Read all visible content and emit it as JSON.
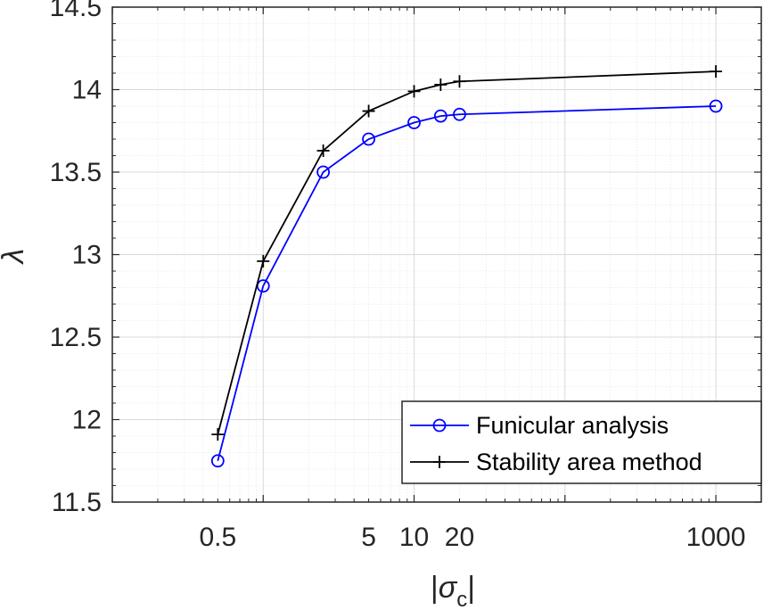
{
  "chart_data": {
    "type": "line",
    "xscale": "log",
    "xlabel": {
      "bar_left": "|",
      "symbol": "σ",
      "subscript": "c",
      "bar_right": "|"
    },
    "ylabel": "λ",
    "xlim": [
      0.1,
      2000
    ],
    "ylim": [
      11.5,
      14.5
    ],
    "grid": true,
    "minor_grid": true,
    "legend_position": "bottom-right",
    "x_ticks": [
      0.5,
      5,
      10,
      20,
      1000
    ],
    "x_tick_labels": [
      "0.5",
      "5",
      "10",
      "20",
      "1000"
    ],
    "y_ticks": [
      11.5,
      12,
      12.5,
      13,
      13.5,
      14,
      14.5
    ],
    "y_tick_labels": [
      "11.5",
      "12",
      "12.5",
      "13",
      "13.5",
      "14",
      "14.5"
    ],
    "series": [
      {
        "name": "Funicular analysis",
        "color": "#0000ff",
        "marker": "circle",
        "x": [
          0.5,
          1,
          2.5,
          5,
          10,
          15,
          20,
          1000
        ],
        "y": [
          11.75,
          12.81,
          13.5,
          13.7,
          13.8,
          13.84,
          13.85,
          13.9
        ]
      },
      {
        "name": "Stability area method",
        "color": "#000000",
        "marker": "plus",
        "x": [
          0.5,
          1,
          2.5,
          5,
          10,
          15,
          20,
          1000
        ],
        "y": [
          11.91,
          12.96,
          13.63,
          13.87,
          13.99,
          14.03,
          14.05,
          14.11
        ]
      }
    ]
  }
}
